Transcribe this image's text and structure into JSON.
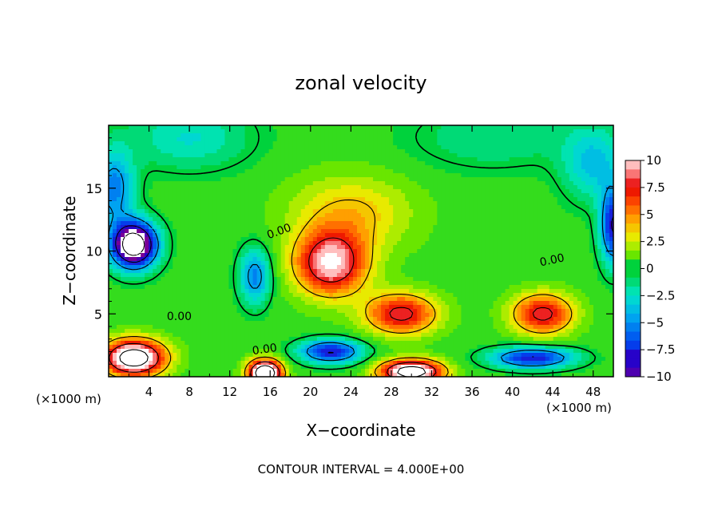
{
  "chart_data": {
    "type": "heatmap",
    "title": "zonal velocity",
    "xlabel": "X−coordinate",
    "ylabel": "Z−coordinate",
    "x_units": "(×1000 m)",
    "z_units": "(×1000 m)",
    "xlim": [
      0,
      50
    ],
    "ylim": [
      0,
      20
    ],
    "x_ticks": [
      4,
      8,
      12,
      16,
      20,
      24,
      28,
      32,
      36,
      40,
      44,
      48
    ],
    "y_ticks": [
      5,
      10,
      15
    ],
    "colorbar": {
      "range": [
        -10,
        10
      ],
      "ticks": [
        10,
        7.5,
        5,
        2.5,
        0,
        -2.5,
        -5,
        -7.5,
        -10
      ],
      "tick_labels": [
        "10",
        "7.5",
        "5",
        "2.5",
        "0",
        "−2.5",
        "−5",
        "−7.5",
        "−10"
      ]
    },
    "contour_label": "0.00",
    "contour_interval_text": "CONTOUR INTERVAL = 4.000E+00",
    "features": [
      {
        "kind": "max",
        "x": 22,
        "z": 9,
        "sx": 3.5,
        "sz": 2.5,
        "value": 10
      },
      {
        "kind": "max",
        "x": 29,
        "z": 5,
        "sx": 3.5,
        "sz": 1.6,
        "value": 8
      },
      {
        "kind": "max",
        "x": 43,
        "z": 5,
        "sx": 3.0,
        "sz": 1.6,
        "value": 8
      },
      {
        "kind": "max",
        "x": 24,
        "z": 13,
        "sx": 6,
        "sz": 3,
        "value": 3.5
      },
      {
        "kind": "max",
        "x": 2.5,
        "z": 1.5,
        "sx": 3,
        "sz": 1.4,
        "value": 14
      },
      {
        "kind": "max",
        "x": 15.5,
        "z": 0.3,
        "sx": 1.6,
        "sz": 1.0,
        "value": 16
      },
      {
        "kind": "max",
        "x": 30,
        "z": 0.4,
        "sx": 3.0,
        "sz": 0.9,
        "value": 14
      },
      {
        "kind": "min",
        "x": 2.5,
        "z": 10.5,
        "sx": 2.2,
        "sz": 1.8,
        "value": -16
      },
      {
        "kind": "min",
        "x": 14.5,
        "z": 8,
        "sx": 1.5,
        "sz": 2.2,
        "value": -6
      },
      {
        "kind": "min",
        "x": 22,
        "z": 2,
        "sx": 3,
        "sz": 0.9,
        "value": -9
      },
      {
        "kind": "min",
        "x": 42,
        "z": 1.5,
        "sx": 4,
        "sz": 0.8,
        "value": -9
      },
      {
        "kind": "min",
        "x": 50,
        "z": 12,
        "sx": 1.3,
        "sz": 3,
        "value": -9
      },
      {
        "kind": "min",
        "x": 0.5,
        "z": 15,
        "sx": 2,
        "sz": 3,
        "value": -6
      },
      {
        "kind": "min",
        "x": 48,
        "z": 17,
        "sx": 3,
        "sz": 3,
        "value": -4
      },
      {
        "kind": "min",
        "x": 8,
        "z": 19,
        "sx": 6,
        "sz": 2.5,
        "value": -3
      },
      {
        "kind": "min",
        "x": 38,
        "z": 19,
        "sx": 8,
        "sz": 2.5,
        "value": -2
      }
    ]
  }
}
